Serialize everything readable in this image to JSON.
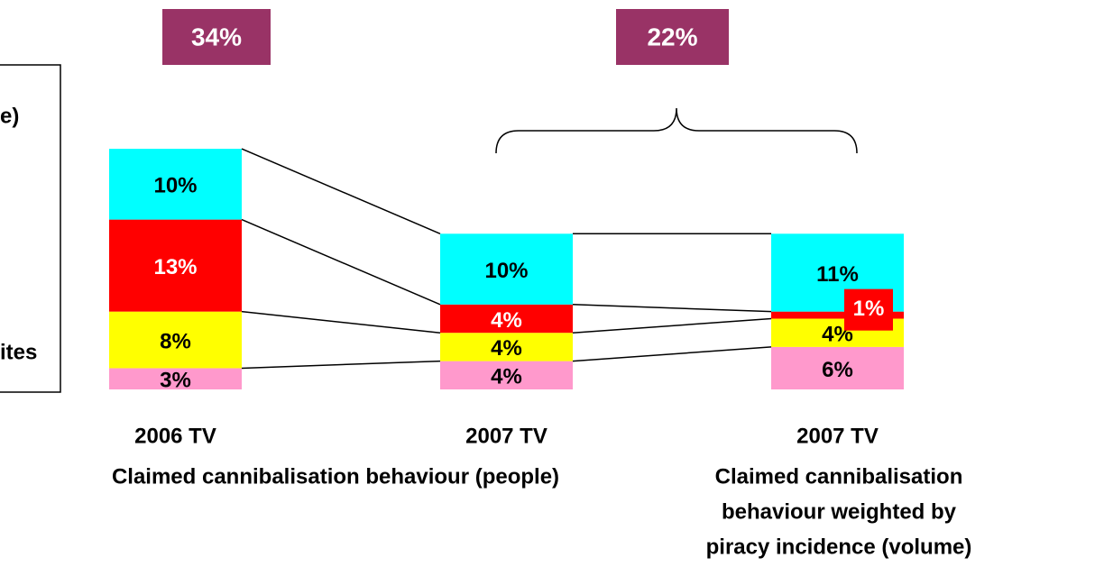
{
  "chart_data": {
    "type": "stacked_bar",
    "categories": [
      "2006 TV",
      "2007 TV",
      "2007 TV"
    ],
    "series": [
      {
        "color": "#ff99cc",
        "values": [
          3,
          4,
          6
        ],
        "value_labels": [
          "3%",
          "4%",
          "6%"
        ]
      },
      {
        "color": "#ffff00",
        "values": [
          8,
          4,
          4
        ],
        "value_labels": [
          "8%",
          "4%",
          "4%"
        ]
      },
      {
        "color": "#ff0000",
        "values": [
          13,
          4,
          1
        ],
        "value_labels": [
          "13%",
          "4%",
          "1%"
        ]
      },
      {
        "color": "#00ffff",
        "values": [
          10,
          10,
          11
        ],
        "value_labels": [
          "10%",
          "10%",
          "11%"
        ]
      }
    ],
    "totals": [
      {
        "value": 34,
        "label": "34%"
      },
      {
        "value": 22,
        "label": "22%"
      }
    ],
    "total_color": "#993366",
    "group_labels": [
      [
        "Claimed cannibalisation behaviour (people)"
      ],
      [
        "Claimed cannibalisation",
        "behaviour weighted by",
        "piracy incidence (volume)"
      ]
    ],
    "legend_fragments": [
      "e)",
      "ites"
    ]
  }
}
